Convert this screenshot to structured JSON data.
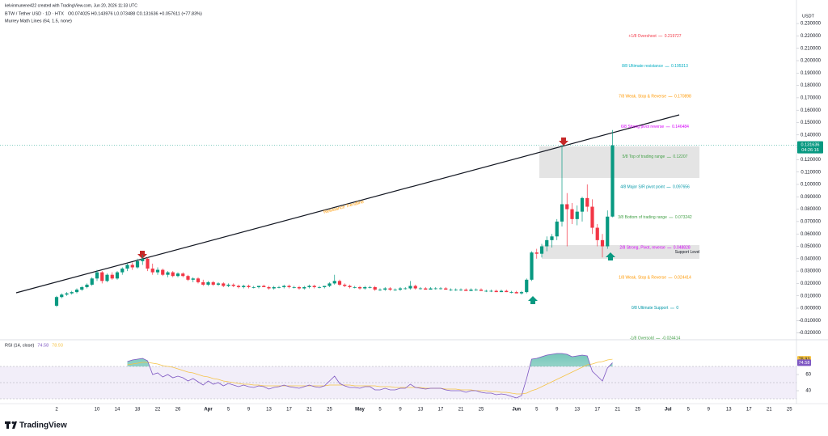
{
  "chart_data": {
    "type": "candlestick",
    "credit": "kelvinmunene422 created with TradingView.com, Jun 20, 2026 11:33 UTC",
    "title": "BTW / Tether USD · 1D · HTX",
    "header_values": "O0.074025 H0.143976 L0.073488 C0.131636 +0.057611 (+77.83%)",
    "indicator": "Murrey Math Lines (64, 1.5, none)",
    "currency": "USDT",
    "countdown": "04:26:16",
    "up_color": "#089981",
    "down_color": "#f23645",
    "categories": [
      "2",
      null,
      null,
      null,
      null,
      null,
      null,
      null,
      "10",
      null,
      null,
      null,
      "14",
      null,
      null,
      null,
      "18",
      null,
      null,
      null,
      "22",
      null,
      null,
      null,
      "26",
      null,
      null,
      null,
      null,
      null,
      "Apr",
      null,
      null,
      null,
      "5",
      null,
      null,
      null,
      "9",
      null,
      null,
      null,
      "13",
      null,
      null,
      null,
      "17",
      null,
      null,
      null,
      "21",
      null,
      null,
      null,
      "25",
      null,
      null,
      null,
      null,
      null,
      "May",
      null,
      null,
      null,
      "5",
      null,
      null,
      null,
      "9",
      null,
      null,
      null,
      "13",
      null,
      null,
      null,
      "17",
      null,
      null,
      null,
      "21",
      null,
      null,
      null,
      "25",
      null,
      null,
      null,
      null,
      null,
      null,
      "Jun",
      null,
      null,
      null,
      "5",
      null,
      null,
      null,
      "9",
      null,
      null,
      null,
      "13",
      null,
      null,
      null,
      "17",
      null,
      null,
      null,
      "21",
      null,
      null,
      null,
      "25",
      null,
      null,
      null,
      null,
      null,
      "Jul",
      null,
      null,
      null,
      "5",
      null,
      null,
      null,
      "9",
      null,
      null,
      null,
      "13",
      null,
      null,
      null,
      "17",
      null,
      null,
      null,
      "21",
      null,
      null,
      null,
      "25"
    ],
    "ohlc": [
      [
        0.002,
        0.01,
        0.001,
        0.009
      ],
      [
        0.009,
        0.012,
        0.008,
        0.011
      ],
      [
        0.011,
        0.013,
        0.01,
        0.012
      ],
      [
        0.012,
        0.014,
        0.011,
        0.013
      ],
      [
        0.013,
        0.016,
        0.012,
        0.015
      ],
      [
        0.015,
        0.018,
        0.014,
        0.017
      ],
      [
        0.017,
        0.02,
        0.016,
        0.019
      ],
      [
        0.019,
        0.025,
        0.018,
        0.024
      ],
      [
        0.024,
        0.031,
        0.022,
        0.029
      ],
      [
        0.029,
        0.03,
        0.02,
        0.022
      ],
      [
        0.022,
        0.028,
        0.021,
        0.027
      ],
      [
        0.027,
        0.029,
        0.023,
        0.024
      ],
      [
        0.024,
        0.03,
        0.023,
        0.029
      ],
      [
        0.029,
        0.033,
        0.027,
        0.032
      ],
      [
        0.032,
        0.036,
        0.03,
        0.035
      ],
      [
        0.035,
        0.037,
        0.031,
        0.033
      ],
      [
        0.033,
        0.04,
        0.032,
        0.038
      ],
      [
        0.038,
        0.043,
        0.035,
        0.04
      ],
      [
        0.04,
        0.041,
        0.03,
        0.032
      ],
      [
        0.032,
        0.036,
        0.027,
        0.029
      ],
      [
        0.029,
        0.033,
        0.027,
        0.031
      ],
      [
        0.031,
        0.032,
        0.026,
        0.027
      ],
      [
        0.027,
        0.03,
        0.025,
        0.029
      ],
      [
        0.029,
        0.03,
        0.025,
        0.026
      ],
      [
        0.026,
        0.029,
        0.025,
        0.028
      ],
      [
        0.028,
        0.029,
        0.025,
        0.026
      ],
      [
        0.026,
        0.027,
        0.022,
        0.023
      ],
      [
        0.023,
        0.025,
        0.021,
        0.024
      ],
      [
        0.024,
        0.025,
        0.02,
        0.021
      ],
      [
        0.021,
        0.023,
        0.018,
        0.019
      ],
      [
        0.019,
        0.022,
        0.018,
        0.021
      ],
      [
        0.021,
        0.022,
        0.018,
        0.019
      ],
      [
        0.019,
        0.021,
        0.018,
        0.02
      ],
      [
        0.02,
        0.021,
        0.017,
        0.018
      ],
      [
        0.018,
        0.02,
        0.017,
        0.019
      ],
      [
        0.019,
        0.02,
        0.017,
        0.018
      ],
      [
        0.018,
        0.019,
        0.016,
        0.017
      ],
      [
        0.017,
        0.019,
        0.016,
        0.018
      ],
      [
        0.018,
        0.019,
        0.016,
        0.017
      ],
      [
        0.017,
        0.018,
        0.016,
        0.017
      ],
      [
        0.017,
        0.018,
        0.016,
        0.018
      ],
      [
        0.018,
        0.019,
        0.017,
        0.017
      ],
      [
        0.017,
        0.018,
        0.015,
        0.016
      ],
      [
        0.016,
        0.018,
        0.015,
        0.017
      ],
      [
        0.017,
        0.018,
        0.016,
        0.017
      ],
      [
        0.017,
        0.019,
        0.016,
        0.018
      ],
      [
        0.018,
        0.019,
        0.016,
        0.017
      ],
      [
        0.017,
        0.018,
        0.016,
        0.017
      ],
      [
        0.017,
        0.018,
        0.015,
        0.016
      ],
      [
        0.016,
        0.018,
        0.015,
        0.017
      ],
      [
        0.017,
        0.019,
        0.016,
        0.018
      ],
      [
        0.018,
        0.019,
        0.016,
        0.017
      ],
      [
        0.017,
        0.018,
        0.016,
        0.017
      ],
      [
        0.017,
        0.018,
        0.016,
        0.018
      ],
      [
        0.018,
        0.021,
        0.017,
        0.02
      ],
      [
        0.02,
        0.027,
        0.019,
        0.022
      ],
      [
        0.022,
        0.023,
        0.018,
        0.019
      ],
      [
        0.019,
        0.02,
        0.017,
        0.018
      ],
      [
        0.018,
        0.019,
        0.016,
        0.017
      ],
      [
        0.017,
        0.018,
        0.016,
        0.017
      ],
      [
        0.017,
        0.018,
        0.015,
        0.016
      ],
      [
        0.016,
        0.018,
        0.015,
        0.017
      ],
      [
        0.017,
        0.018,
        0.016,
        0.017
      ],
      [
        0.017,
        0.018,
        0.014,
        0.015
      ],
      [
        0.015,
        0.016,
        0.014,
        0.015
      ],
      [
        0.015,
        0.017,
        0.014,
        0.016
      ],
      [
        0.016,
        0.017,
        0.014,
        0.015
      ],
      [
        0.015,
        0.016,
        0.014,
        0.015
      ],
      [
        0.015,
        0.017,
        0.014,
        0.016
      ],
      [
        0.016,
        0.017,
        0.015,
        0.016
      ],
      [
        0.016,
        0.022,
        0.015,
        0.018
      ],
      [
        0.018,
        0.019,
        0.015,
        0.016
      ],
      [
        0.016,
        0.017,
        0.015,
        0.016
      ],
      [
        0.016,
        0.017,
        0.015,
        0.015
      ],
      [
        0.015,
        0.017,
        0.015,
        0.016
      ],
      [
        0.016,
        0.017,
        0.015,
        0.016
      ],
      [
        0.016,
        0.017,
        0.015,
        0.016
      ],
      [
        0.016,
        0.017,
        0.015,
        0.015
      ],
      [
        0.015,
        0.016,
        0.014,
        0.015
      ],
      [
        0.015,
        0.016,
        0.014,
        0.015
      ],
      [
        0.015,
        0.016,
        0.014,
        0.015
      ],
      [
        0.015,
        0.016,
        0.014,
        0.014
      ],
      [
        0.014,
        0.016,
        0.014,
        0.015
      ],
      [
        0.015,
        0.016,
        0.014,
        0.015
      ],
      [
        0.015,
        0.016,
        0.014,
        0.014
      ],
      [
        0.014,
        0.015,
        0.013,
        0.014
      ],
      [
        0.014,
        0.015,
        0.013,
        0.014
      ],
      [
        0.014,
        0.015,
        0.013,
        0.013
      ],
      [
        0.013,
        0.015,
        0.013,
        0.014
      ],
      [
        0.014,
        0.015,
        0.013,
        0.013
      ],
      [
        0.013,
        0.014,
        0.012,
        0.013
      ],
      [
        0.013,
        0.014,
        0.012,
        0.012
      ],
      [
        0.012,
        0.014,
        0.011,
        0.013
      ],
      [
        0.013,
        0.024,
        0.012,
        0.023
      ],
      [
        0.023,
        0.046,
        0.022,
        0.045
      ],
      [
        0.045,
        0.048,
        0.04,
        0.044
      ],
      [
        0.044,
        0.052,
        0.041,
        0.05
      ],
      [
        0.05,
        0.058,
        0.046,
        0.055
      ],
      [
        0.055,
        0.06,
        0.049,
        0.058
      ],
      [
        0.058,
        0.072,
        0.055,
        0.07
      ],
      [
        0.07,
        0.132,
        0.066,
        0.084
      ],
      [
        0.084,
        0.093,
        0.05,
        0.08
      ],
      [
        0.08,
        0.085,
        0.068,
        0.072
      ],
      [
        0.072,
        0.083,
        0.067,
        0.078
      ],
      [
        0.078,
        0.09,
        0.07,
        0.089
      ],
      [
        0.089,
        0.1,
        0.078,
        0.082
      ],
      [
        0.082,
        0.088,
        0.06,
        0.065
      ],
      [
        0.065,
        0.068,
        0.05,
        0.055
      ],
      [
        0.055,
        0.06,
        0.041,
        0.05
      ],
      [
        0.05,
        0.079,
        0.048,
        0.074
      ],
      [
        0.074025,
        0.143976,
        0.073488,
        0.131636
      ],
      null,
      null,
      null,
      null,
      null,
      null,
      null,
      null,
      null,
      null,
      null,
      null,
      null,
      null,
      null,
      null,
      null,
      null,
      null,
      null,
      null,
      null,
      null,
      null,
      null,
      null,
      null,
      null,
      null,
      null,
      null,
      null,
      null,
      null
    ],
    "ylim": [
      -0.025,
      0.235
    ],
    "yticks": [
      {
        "value": 0.23,
        "label": "0.230000"
      },
      {
        "value": 0.22,
        "label": "0.220000"
      },
      {
        "value": 0.21,
        "label": "0.210000"
      },
      {
        "value": 0.2,
        "label": "0.200000"
      },
      {
        "value": 0.19,
        "label": "0.190000"
      },
      {
        "value": 0.18,
        "label": "0.180000"
      },
      {
        "value": 0.17,
        "label": "0.170000"
      },
      {
        "value": 0.16,
        "label": "0.160000"
      },
      {
        "value": 0.15,
        "label": "0.150000"
      },
      {
        "value": 0.14,
        "label": "0.140000"
      },
      {
        "value": 0.13,
        "label": "0.130000"
      },
      {
        "value": 0.12,
        "label": "0.120000"
      },
      {
        "value": 0.11,
        "label": "0.110000"
      },
      {
        "value": 0.1,
        "label": "0.100000"
      },
      {
        "value": 0.09,
        "label": "0.090000"
      },
      {
        "value": 0.08,
        "label": "0.080000"
      },
      {
        "value": 0.07,
        "label": "0.070000"
      },
      {
        "value": 0.06,
        "label": "0.060000"
      },
      {
        "value": 0.05,
        "label": "0.050000"
      },
      {
        "value": 0.04,
        "label": "0.040000"
      },
      {
        "value": 0.03,
        "label": "0.030000"
      },
      {
        "value": 0.02,
        "label": "0.020000"
      },
      {
        "value": 0.01,
        "label": "0.010000"
      },
      {
        "value": 0,
        "label": "0.000000"
      },
      {
        "value": -0.01,
        "label": "-0.010000"
      },
      {
        "value": -0.02,
        "label": "-0.020000"
      }
    ],
    "murrey": [
      {
        "label": "+1/8 Overshoot",
        "value": 0.219727,
        "color": "#f23645"
      },
      {
        "label": "8/8 Ultimate resistance",
        "value": 0.195313,
        "color": "#00acc1"
      },
      {
        "label": "7/8 Weak, Stop & Reverse",
        "value": 0.170898,
        "color": "#ff9800"
      },
      {
        "label": "6/8 Strong pivot reverse",
        "value": 0.146484,
        "color": "#d500f9"
      },
      {
        "label": "5/8 Top of trading range",
        "value": 0.12207,
        "color": "#43a047"
      },
      {
        "label": "4/8 Major S/R pivot point",
        "value": 0.097656,
        "color": "#0097a7"
      },
      {
        "label": "3/8 Bottom of trading range",
        "value": 0.073242,
        "color": "#43a047"
      },
      {
        "label": "2/8 Strong, Pivot, reverse",
        "value": 0.048828,
        "color": "#d500f9"
      },
      {
        "label": "1/8 Weak, Stop & Reverse",
        "value": 0.024414,
        "color": "#ff9800"
      },
      {
        "label": "0/8 Ultimate Support",
        "value": 0,
        "color": "#0097a7"
      },
      {
        "label": "-1/8 Oversold",
        "value": -0.024414,
        "color": "#43a047"
      }
    ],
    "trendline_label": "Resistance Trendline",
    "support_label": "Support Level",
    "rsi": {
      "title": "RSI (14, close)",
      "color": "#7e57c2",
      "ma_color": "#f5c242",
      "ylim": [
        20,
        100
      ],
      "yticks": [
        60,
        40
      ],
      "bands": [
        30,
        70
      ],
      "values": [
        null,
        null,
        null,
        null,
        null,
        null,
        null,
        null,
        null,
        null,
        null,
        null,
        null,
        null,
        76,
        78,
        79,
        80,
        77,
        60,
        62,
        57,
        60,
        56,
        58,
        56,
        52,
        55,
        51,
        47,
        52,
        48,
        50,
        46,
        49,
        47,
        45,
        47,
        45,
        44,
        46,
        45,
        42,
        44,
        45,
        47,
        45,
        44,
        43,
        45,
        47,
        45,
        44,
        46,
        52,
        58,
        49,
        46,
        44,
        44,
        43,
        45,
        45,
        41,
        41,
        43,
        41,
        41,
        43,
        43,
        48,
        44,
        43,
        42,
        43,
        43,
        43,
        41,
        40,
        40,
        40,
        38,
        40,
        40,
        38,
        37,
        37,
        35,
        36,
        35,
        33,
        31,
        34,
        55,
        79,
        80,
        82,
        84,
        85,
        86,
        86,
        85,
        82,
        83,
        84,
        83,
        64,
        58,
        52,
        68,
        74.58,
        null,
        null,
        null,
        null,
        null,
        null,
        null,
        null,
        null,
        null,
        null,
        null,
        null,
        null,
        null,
        null,
        null,
        null,
        null,
        null,
        null,
        null,
        null,
        null,
        null,
        null,
        null,
        null,
        null,
        null,
        null,
        null,
        null,
        null,
        null
      ],
      "ma": [
        null,
        null,
        null,
        null,
        null,
        null,
        null,
        null,
        null,
        null,
        null,
        null,
        null,
        null,
        72,
        73,
        74,
        75,
        75,
        74,
        73,
        71,
        70,
        69,
        67,
        65,
        63,
        62,
        60,
        58,
        57,
        55,
        54,
        52,
        51,
        50,
        49,
        48,
        48,
        47,
        47,
        46,
        46,
        46,
        46,
        46,
        46,
        46,
        46,
        46,
        46,
        46,
        46,
        46,
        47,
        47,
        47,
        47,
        47,
        46,
        46,
        46,
        46,
        46,
        45,
        45,
        45,
        44,
        44,
        44,
        44,
        44,
        44,
        43,
        43,
        43,
        43,
        42,
        42,
        42,
        41,
        41,
        41,
        40,
        40,
        40,
        39,
        39,
        38,
        38,
        37,
        36,
        36,
        37,
        40,
        42,
        45,
        48,
        51,
        54,
        57,
        60,
        63,
        66,
        69,
        72,
        73,
        75,
        76,
        78,
        78.93,
        null,
        null,
        null,
        null,
        null,
        null,
        null,
        null,
        null,
        null,
        null,
        null,
        null,
        null,
        null,
        null,
        null,
        null,
        null,
        null,
        null,
        null,
        null,
        null,
        null,
        null,
        null,
        null,
        null,
        null,
        null,
        null,
        null,
        null,
        null
      ]
    },
    "brand": "TradingView"
  }
}
